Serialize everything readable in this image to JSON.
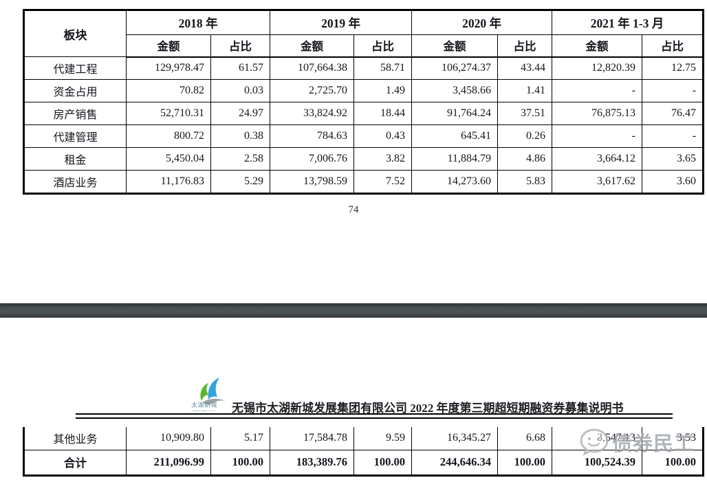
{
  "document": {
    "page_number": "74",
    "header_title": "无锡市太湖新城发展集团有限公司 2022 年度第三期超短期融资券募集说明书",
    "logo": {
      "text": "太湖新城",
      "subtext": "TAIHU NEW CITY"
    },
    "watermark": {
      "icon": "chat-bubble-icon",
      "text": "债券民工"
    }
  },
  "table": {
    "sector_header": "板块",
    "amount_label": "金额",
    "ratio_label": "占比",
    "year_groups": [
      "2018 年",
      "2019 年",
      "2020 年",
      "2021 年 1-3 月"
    ],
    "rows": [
      {
        "sector": "代建工程",
        "cells": [
          "129,978.47",
          "61.57",
          "107,664.38",
          "58.71",
          "106,274.37",
          "43.44",
          "12,820.39",
          "12.75"
        ]
      },
      {
        "sector": "资金占用",
        "cells": [
          "70.82",
          "0.03",
          "2,725.70",
          "1.49",
          "3,458.66",
          "1.41",
          "-",
          "-"
        ]
      },
      {
        "sector": "房产销售",
        "cells": [
          "52,710.31",
          "24.97",
          "33,824.92",
          "18.44",
          "91,764.24",
          "37.51",
          "76,875.13",
          "76.47"
        ]
      },
      {
        "sector": "代建管理",
        "cells": [
          "800.72",
          "0.38",
          "784.63",
          "0.43",
          "645.41",
          "0.26",
          "-",
          "-"
        ]
      },
      {
        "sector": "租金",
        "cells": [
          "5,450.04",
          "2.58",
          "7,006.76",
          "3.82",
          "11,884.79",
          "4.86",
          "3,664.12",
          "3.65"
        ]
      },
      {
        "sector": "酒店业务",
        "cells": [
          "11,176.83",
          "5.29",
          "13,798.59",
          "7.52",
          "14,273.60",
          "5.83",
          "3,617.62",
          "3.60"
        ]
      }
    ],
    "continued_rows": [
      {
        "sector": "其他业务",
        "cells": [
          "10,909.80",
          "5.17",
          "17,584.78",
          "9.59",
          "16,345.27",
          "6.68",
          "3,547.13",
          "3.53"
        ],
        "total": false
      },
      {
        "sector": "合计",
        "cells": [
          "211,096.99",
          "100.00",
          "183,389.76",
          "100.00",
          "244,646.34",
          "100.00",
          "100,524.39",
          "100.00"
        ],
        "total": true
      }
    ]
  },
  "colors": {
    "separator_band": "#45494d",
    "table_border": "#000000",
    "watermark_gray": "#9aa0a6",
    "logo_green": "#5cb531",
    "logo_blue": "#33a3dc",
    "logo_gray": "#9ea3a7"
  }
}
